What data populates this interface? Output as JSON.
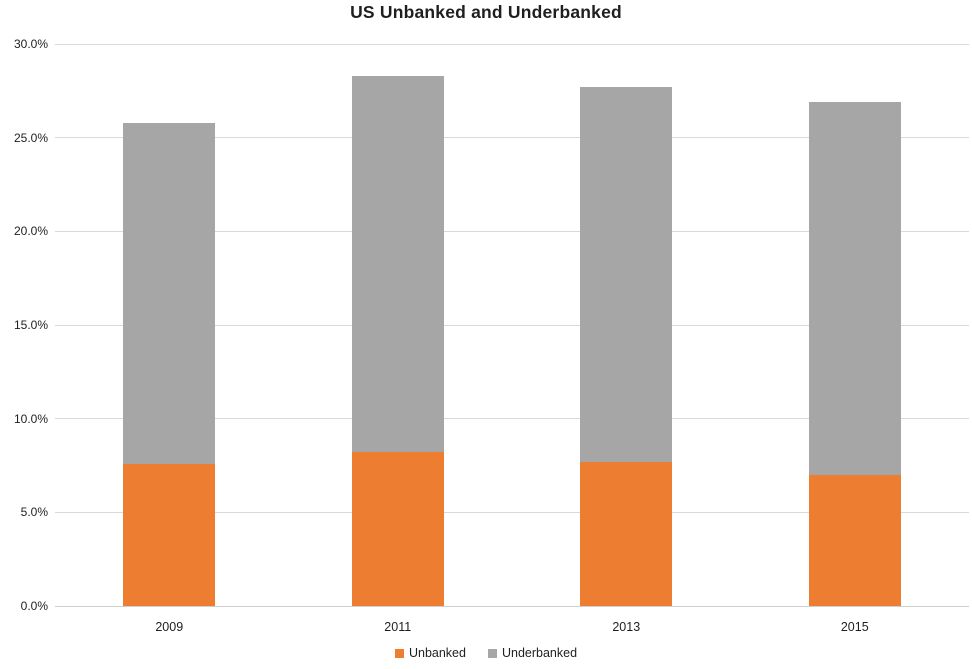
{
  "title": "US Unbanked and Underbanked",
  "chart_data": {
    "type": "bar",
    "stacked": true,
    "title": "US Unbanked and Underbanked",
    "categories": [
      "2009",
      "2011",
      "2013",
      "2015"
    ],
    "series": [
      {
        "name": "Unbanked",
        "color": "#ED7D31",
        "values": [
          7.6,
          8.2,
          7.7,
          7.0
        ]
      },
      {
        "name": "Underbanked",
        "color": "#A6A6A6",
        "values": [
          18.2,
          20.1,
          20.0,
          19.9
        ]
      }
    ],
    "totals": [
      25.8,
      28.3,
      27.7,
      26.9
    ],
    "xlabel": "",
    "ylabel": "",
    "ylim": [
      0,
      30
    ],
    "ytick_step": 5,
    "ytick_labels": [
      "0.0%",
      "5.0%",
      "10.0%",
      "15.0%",
      "20.0%",
      "25.0%",
      "30.0%"
    ],
    "grid": true,
    "gridline_color": "#D9D9D9",
    "axis_line_color": "#CFCFCF",
    "text_color": "#1F1F1F",
    "background_color": "#FFFFFF",
    "legend_position": "bottom"
  }
}
